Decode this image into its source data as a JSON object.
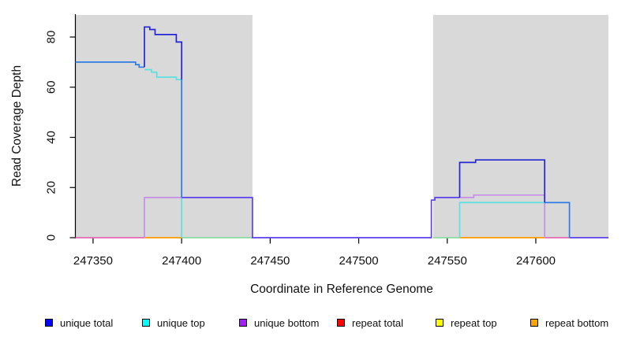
{
  "chart_data": {
    "type": "line",
    "title": "",
    "xlabel": "Coordinate in Reference Genome",
    "ylabel": "Read Coverage Depth",
    "xlim": [
      247340,
      247641
    ],
    "ylim": [
      0,
      88.8
    ],
    "xticks": [
      247350,
      247400,
      247450,
      247500,
      247550,
      247600
    ],
    "yticks": [
      0,
      20,
      40,
      60,
      80
    ],
    "grid": false,
    "legend_position": "bottom",
    "shade_color": "#d9d9d9",
    "shaded_regions": [
      {
        "x0": 247340,
        "x1": 247440
      },
      {
        "x0": 247542,
        "x1": 247641
      }
    ],
    "series": [
      {
        "name": "unique total",
        "color": "#0000ff",
        "steps": [
          [
            247340,
            70
          ],
          [
            247374,
            69
          ],
          [
            247376,
            68
          ],
          [
            247379,
            84
          ],
          [
            247382,
            83
          ],
          [
            247385,
            81
          ],
          [
            247397,
            78
          ],
          [
            247400,
            16
          ],
          [
            247440,
            0
          ],
          [
            247541,
            15
          ],
          [
            247543,
            16
          ],
          [
            247557,
            30
          ],
          [
            247566,
            31
          ],
          [
            247605,
            14
          ],
          [
            247619,
            0
          ],
          [
            247641,
            0
          ]
        ]
      },
      {
        "name": "unique top",
        "color": "#00ffff",
        "steps": [
          [
            247340,
            70
          ],
          [
            247374,
            69
          ],
          [
            247376,
            68
          ],
          [
            247379,
            67
          ],
          [
            247383,
            66
          ],
          [
            247386,
            64
          ],
          [
            247397,
            63
          ],
          [
            247400,
            0
          ],
          [
            247557,
            14
          ],
          [
            247619,
            0
          ],
          [
            247641,
            0
          ]
        ]
      },
      {
        "name": "unique bottom",
        "color": "#a020f0",
        "steps": [
          [
            247340,
            0
          ],
          [
            247379,
            16
          ],
          [
            247440,
            0
          ],
          [
            247541,
            15
          ],
          [
            247543,
            16
          ],
          [
            247565,
            17
          ],
          [
            247605,
            0
          ],
          [
            247641,
            0
          ]
        ]
      },
      {
        "name": "repeat total",
        "color": "#ff0000",
        "steps": [
          [
            247340,
            0
          ],
          [
            247641,
            0
          ]
        ]
      },
      {
        "name": "repeat top",
        "color": "#ffff00",
        "steps": [
          [
            247340,
            0
          ],
          [
            247641,
            0
          ]
        ]
      },
      {
        "name": "repeat bottom",
        "color": "#ffa500",
        "steps": [
          [
            247340,
            0
          ],
          [
            247641,
            0
          ]
        ]
      }
    ],
    "visual_segments": [
      {
        "color": "#e06ab4",
        "points": [
          [
            247340,
            0
          ],
          [
            247379,
            0
          ]
        ]
      },
      {
        "color": "#ff9800",
        "points": [
          [
            247379,
            0
          ],
          [
            247400,
            0
          ]
        ]
      },
      {
        "color": "#8bd9a3",
        "points": [
          [
            247400,
            0
          ],
          [
            247440,
            0
          ]
        ]
      },
      {
        "color": "#8bd9a3",
        "points": [
          [
            247542,
            0
          ],
          [
            247557,
            0
          ]
        ]
      },
      {
        "color": "#ff9800",
        "points": [
          [
            247557,
            0
          ],
          [
            247605,
            0
          ]
        ]
      },
      {
        "color": "#e06ab4",
        "points": [
          [
            247605,
            0
          ],
          [
            247619,
            0
          ]
        ]
      },
      {
        "color": "#5ce0e0",
        "points": [
          [
            247379,
            67
          ],
          [
            247383,
            67
          ],
          [
            247383,
            66
          ],
          [
            247386,
            66
          ],
          [
            247386,
            64
          ],
          [
            247397,
            64
          ],
          [
            247397,
            63
          ],
          [
            247400,
            63
          ],
          [
            247400,
            0
          ]
        ]
      },
      {
        "color": "#5ce0e0",
        "points": [
          [
            247557,
            0
          ],
          [
            247557,
            14
          ],
          [
            247605,
            14
          ]
        ]
      },
      {
        "color": "#c68fe8",
        "points": [
          [
            247379,
            0
          ],
          [
            247379,
            16
          ],
          [
            247400,
            16
          ]
        ]
      },
      {
        "color": "#c68fe8",
        "points": [
          [
            247557,
            16
          ],
          [
            247565,
            16
          ],
          [
            247565,
            17
          ],
          [
            247605,
            17
          ],
          [
            247605,
            0
          ]
        ]
      },
      {
        "color": "#5a40ea",
        "points": [
          [
            247400,
            16
          ],
          [
            247440,
            16
          ],
          [
            247440,
            0
          ],
          [
            247541,
            0
          ],
          [
            247541,
            15
          ],
          [
            247543,
            15
          ],
          [
            247543,
            16
          ],
          [
            247557,
            16
          ]
        ]
      },
      {
        "color": "#5a40ea",
        "points": [
          [
            247619,
            0
          ],
          [
            247641,
            0
          ]
        ]
      },
      {
        "color": "#2e7ce6",
        "points": [
          [
            247340,
            70
          ],
          [
            247374,
            70
          ],
          [
            247374,
            69
          ],
          [
            247376,
            69
          ],
          [
            247376,
            68
          ],
          [
            247379,
            68
          ]
        ]
      },
      {
        "color": "#2e7ce6",
        "points": [
          [
            247400,
            63
          ],
          [
            247400,
            16
          ]
        ]
      },
      {
        "color": "#2e7ce6",
        "points": [
          [
            247605,
            14
          ],
          [
            247619,
            14
          ],
          [
            247619,
            0
          ]
        ]
      },
      {
        "color": "#2525d6",
        "points": [
          [
            247379,
            68
          ],
          [
            247379,
            84
          ],
          [
            247382,
            84
          ],
          [
            247382,
            83
          ],
          [
            247385,
            83
          ],
          [
            247385,
            81
          ],
          [
            247397,
            81
          ],
          [
            247397,
            78
          ],
          [
            247400,
            78
          ],
          [
            247400,
            63
          ]
        ]
      },
      {
        "color": "#2525d6",
        "points": [
          [
            247557,
            16
          ],
          [
            247557,
            30
          ],
          [
            247566,
            30
          ],
          [
            247566,
            31
          ],
          [
            247605,
            31
          ],
          [
            247605,
            14
          ]
        ]
      }
    ],
    "legend": [
      {
        "label": "unique total",
        "color": "#0000ff"
      },
      {
        "label": "unique top",
        "color": "#00ffff"
      },
      {
        "label": "unique bottom",
        "color": "#a020f0"
      },
      {
        "label": "repeat total",
        "color": "#ff0000"
      },
      {
        "label": "repeat top",
        "color": "#ffff00"
      },
      {
        "label": "repeat bottom",
        "color": "#ffa500"
      }
    ]
  }
}
